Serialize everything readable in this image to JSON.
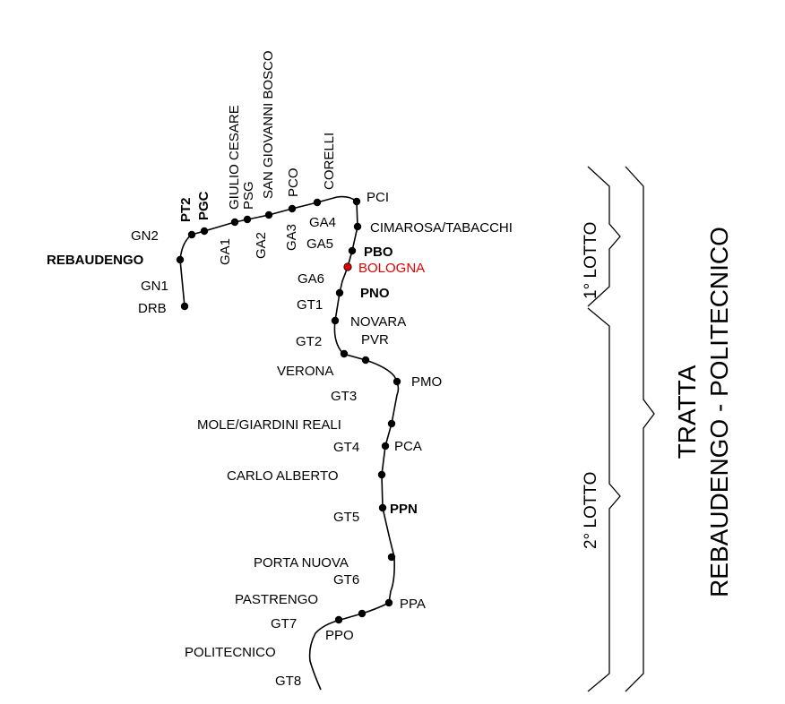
{
  "colors": {
    "line": "#000000",
    "station": "#000000",
    "highlight": "#e10000",
    "background": "#ffffff"
  },
  "labels": {
    "gn2": "GN2",
    "rebaudengo": "REBAUDENGO",
    "gn1": "GN1",
    "drb": "DRB",
    "pt2": "PT2",
    "pgc": "PGC",
    "giulio_cesare": "GIULIO CESARE",
    "psg": "PSG",
    "san_giovanni_bosco": "SAN GIOVANNI BOSCO",
    "pco": "PCO",
    "corelli": "CORELLI",
    "ga1": "GA1",
    "ga2": "GA2",
    "ga3": "GA3",
    "pci": "PCI",
    "ga4": "GA4",
    "cimarosa_tabacchi": "CIMAROSA/TABACCHI",
    "ga5": "GA5",
    "pbo": "PBO",
    "bologna": "BOLOGNA",
    "ga6": "GA6",
    "pno": "PNO",
    "gt1": "GT1",
    "novara": "NOVARA",
    "gt2": "GT2",
    "pvr": "PVR",
    "verona": "VERONA",
    "pmo": "PMO",
    "gt3": "GT3",
    "mole_giardini_reali": "MOLE/GIARDINI REALI",
    "gt4": "GT4",
    "pca": "PCA",
    "carlo_alberto": "CARLO ALBERTO",
    "gt5": "GT5",
    "ppn": "PPN",
    "porta_nuova": "PORTA NUOVA",
    "gt6": "GT6",
    "pastrengo": "PASTRENGO",
    "ppa": "PPA",
    "gt7": "GT7",
    "ppo": "PPO",
    "politecnico": "POLITECNICO",
    "gt8": "GT8"
  },
  "lots": {
    "lot1": "1° LOTTO",
    "lot2": "2° LOTTO"
  },
  "tratta": {
    "line1": "TRATTA",
    "line2": "REBAUDENGO - POLITECNICO"
  }
}
